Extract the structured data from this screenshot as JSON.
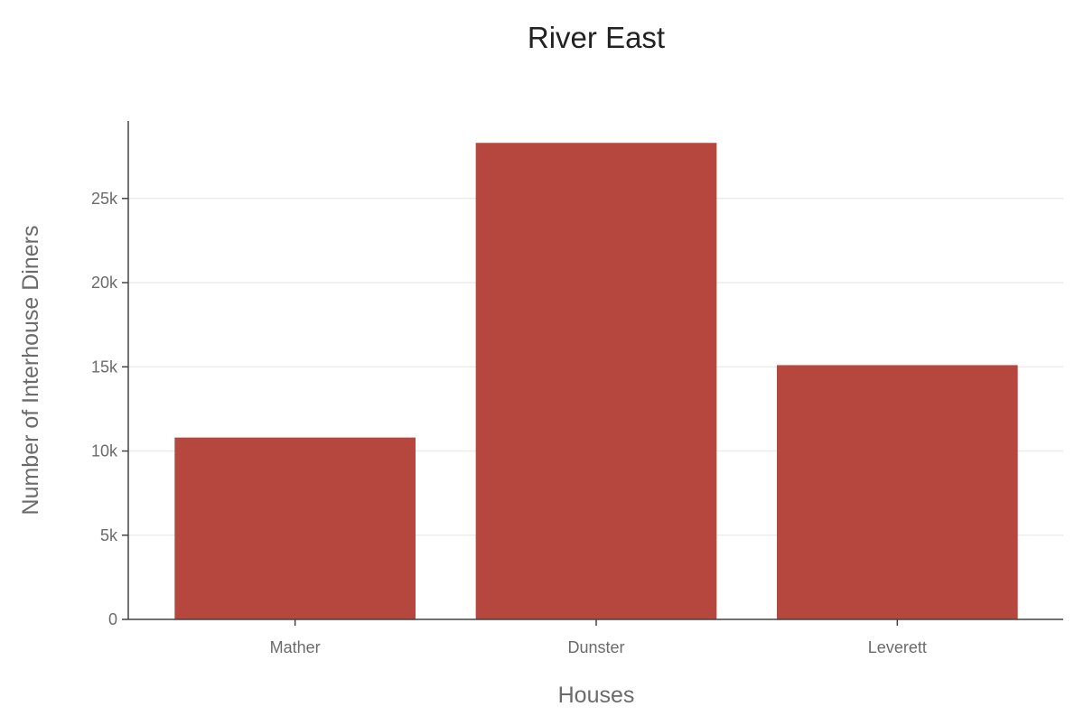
{
  "chart_data": {
    "type": "bar",
    "title": "River East",
    "xlabel": "Houses",
    "ylabel": "Number of Interhouse Diners",
    "categories": [
      "Mather",
      "Dunster",
      "Leverett"
    ],
    "values": [
      10800,
      28300,
      15100
    ],
    "ylim": [
      0,
      29600
    ],
    "yticks": [
      0,
      5000,
      10000,
      15000,
      20000,
      25000
    ],
    "ytick_labels": [
      "0",
      "5k",
      "10k",
      "15k",
      "20k",
      "25k"
    ],
    "grid": true,
    "legend": "none",
    "bar_color": "#b5473f"
  }
}
